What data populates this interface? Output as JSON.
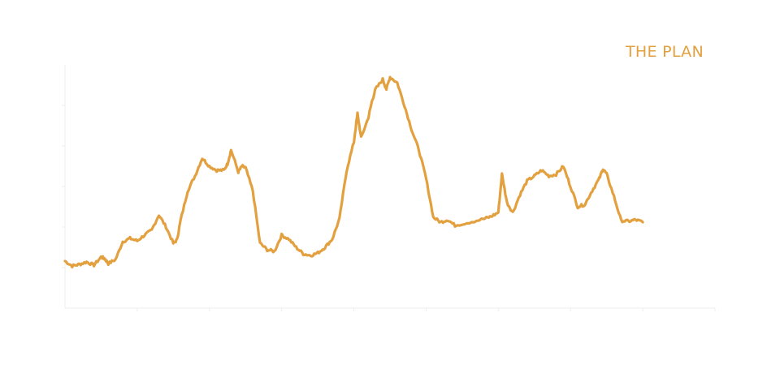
{
  "chart_data": {
    "type": "line",
    "title": "",
    "xlabel": "",
    "ylabel": "",
    "xlim": [
      0,
      900
    ],
    "ylim": [
      0,
      300
    ],
    "grid": false,
    "legend": {
      "placement": "top-right"
    },
    "series": [
      {
        "name": "THE PLAN",
        "color": "#E3A03F",
        "points": [
          [
            0,
            58
          ],
          [
            10,
            52
          ],
          [
            20,
            54
          ],
          [
            30,
            57
          ],
          [
            40,
            53
          ],
          [
            50,
            63
          ],
          [
            55,
            61
          ],
          [
            60,
            55
          ],
          [
            70,
            60
          ],
          [
            80,
            82
          ],
          [
            90,
            86
          ],
          [
            100,
            83
          ],
          [
            110,
            90
          ],
          [
            120,
            96
          ],
          [
            130,
            115
          ],
          [
            140,
            100
          ],
          [
            150,
            80
          ],
          [
            155,
            84
          ],
          [
            160,
            108
          ],
          [
            170,
            145
          ],
          [
            180,
            163
          ],
          [
            190,
            185
          ],
          [
            200,
            175
          ],
          [
            210,
            170
          ],
          [
            220,
            170
          ],
          [
            225,
            178
          ],
          [
            230,
            195
          ],
          [
            240,
            168
          ],
          [
            245,
            175
          ],
          [
            250,
            173
          ],
          [
            260,
            145
          ],
          [
            270,
            80
          ],
          [
            280,
            72
          ],
          [
            290,
            70
          ],
          [
            300,
            90
          ],
          [
            310,
            85
          ],
          [
            320,
            75
          ],
          [
            330,
            67
          ],
          [
            340,
            65
          ],
          [
            350,
            68
          ],
          [
            360,
            75
          ],
          [
            370,
            85
          ],
          [
            380,
            110
          ],
          [
            390,
            170
          ],
          [
            400,
            205
          ],
          [
            405,
            240
          ],
          [
            410,
            210
          ],
          [
            420,
            235
          ],
          [
            425,
            255
          ],
          [
            430,
            270
          ],
          [
            440,
            282
          ],
          [
            445,
            270
          ],
          [
            450,
            285
          ],
          [
            460,
            278
          ],
          [
            470,
            250
          ],
          [
            480,
            220
          ],
          [
            490,
            195
          ],
          [
            500,
            160
          ],
          [
            510,
            112
          ],
          [
            520,
            106
          ],
          [
            530,
            109
          ],
          [
            540,
            102
          ],
          [
            560,
            106
          ],
          [
            580,
            110
          ],
          [
            590,
            113
          ],
          [
            600,
            118
          ],
          [
            605,
            165
          ],
          [
            612,
            130
          ],
          [
            620,
            118
          ],
          [
            630,
            140
          ],
          [
            640,
            157
          ],
          [
            650,
            163
          ],
          [
            660,
            170
          ],
          [
            670,
            163
          ],
          [
            680,
            165
          ],
          [
            690,
            175
          ],
          [
            700,
            150
          ],
          [
            710,
            125
          ],
          [
            720,
            128
          ],
          [
            730,
            145
          ],
          [
            740,
            160
          ],
          [
            745,
            172
          ],
          [
            750,
            165
          ],
          [
            760,
            138
          ],
          [
            770,
            108
          ],
          [
            780,
            107
          ],
          [
            790,
            109
          ],
          [
            800,
            106
          ]
        ]
      }
    ]
  }
}
